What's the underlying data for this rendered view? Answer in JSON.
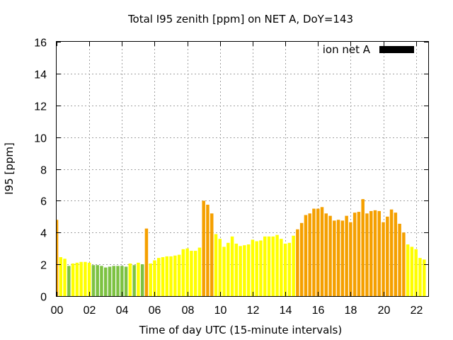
{
  "chart_data": {
    "type": "bar",
    "title": "Total I95 zenith [ppm] on NET A, DoY=143",
    "xlabel": "Time of day UTC (15-minute intervals)",
    "ylabel": "I95 [ppm]",
    "xlim": [
      0,
      22.75
    ],
    "ylim": [
      0,
      16
    ],
    "grid": true,
    "legend": {
      "position": "top-right",
      "entries": [
        {
          "label": "ion net A",
          "color": "#000000"
        }
      ]
    },
    "x_ticks": [
      {
        "value": 0,
        "label": "00"
      },
      {
        "value": 2,
        "label": "02"
      },
      {
        "value": 4,
        "label": "04"
      },
      {
        "value": 6,
        "label": "06"
      },
      {
        "value": 8,
        "label": "08"
      },
      {
        "value": 10,
        "label": "10"
      },
      {
        "value": 12,
        "label": "12"
      },
      {
        "value": 14,
        "label": "14"
      },
      {
        "value": 16,
        "label": "16"
      },
      {
        "value": 18,
        "label": "18"
      },
      {
        "value": 20,
        "label": "20"
      },
      {
        "value": 22,
        "label": "22"
      }
    ],
    "y_ticks": [
      {
        "value": 0,
        "label": "0"
      },
      {
        "value": 2,
        "label": "2"
      },
      {
        "value": 4,
        "label": "4"
      },
      {
        "value": 6,
        "label": "6"
      },
      {
        "value": 8,
        "label": "8"
      },
      {
        "value": 10,
        "label": "10"
      },
      {
        "value": 12,
        "label": "12"
      },
      {
        "value": 14,
        "label": "14"
      },
      {
        "value": 16,
        "label": "16"
      }
    ],
    "colors": {
      "green": "#7dc242",
      "yellow": "#ffff00",
      "orange": "#f5a000"
    },
    "bars": [
      {
        "x": 0.0,
        "value": 4.8,
        "color": "orange"
      },
      {
        "x": 0.25,
        "value": 2.45,
        "color": "yellow"
      },
      {
        "x": 0.5,
        "value": 2.35,
        "color": "yellow"
      },
      {
        "x": 0.75,
        "value": 1.9,
        "color": "green"
      },
      {
        "x": 1.0,
        "value": 2.05,
        "color": "yellow"
      },
      {
        "x": 1.25,
        "value": 2.1,
        "color": "yellow"
      },
      {
        "x": 1.5,
        "value": 2.15,
        "color": "yellow"
      },
      {
        "x": 1.75,
        "value": 2.15,
        "color": "yellow"
      },
      {
        "x": 2.0,
        "value": 2.1,
        "color": "yellow"
      },
      {
        "x": 2.25,
        "value": 1.95,
        "color": "green"
      },
      {
        "x": 2.5,
        "value": 1.95,
        "color": "green"
      },
      {
        "x": 2.75,
        "value": 1.9,
        "color": "green"
      },
      {
        "x": 3.0,
        "value": 1.8,
        "color": "green"
      },
      {
        "x": 3.25,
        "value": 1.85,
        "color": "green"
      },
      {
        "x": 3.5,
        "value": 1.9,
        "color": "green"
      },
      {
        "x": 3.75,
        "value": 1.9,
        "color": "green"
      },
      {
        "x": 4.0,
        "value": 1.9,
        "color": "green"
      },
      {
        "x": 4.25,
        "value": 1.85,
        "color": "green"
      },
      {
        "x": 4.5,
        "value": 2.05,
        "color": "yellow"
      },
      {
        "x": 4.75,
        "value": 1.95,
        "color": "green"
      },
      {
        "x": 5.0,
        "value": 2.1,
        "color": "yellow"
      },
      {
        "x": 5.25,
        "value": 2.0,
        "color": "green"
      },
      {
        "x": 5.5,
        "value": 4.25,
        "color": "orange"
      },
      {
        "x": 5.75,
        "value": 2.05,
        "color": "yellow"
      },
      {
        "x": 6.0,
        "value": 2.25,
        "color": "yellow"
      },
      {
        "x": 6.25,
        "value": 2.4,
        "color": "yellow"
      },
      {
        "x": 6.5,
        "value": 2.45,
        "color": "yellow"
      },
      {
        "x": 6.75,
        "value": 2.5,
        "color": "yellow"
      },
      {
        "x": 7.0,
        "value": 2.5,
        "color": "yellow"
      },
      {
        "x": 7.25,
        "value": 2.55,
        "color": "yellow"
      },
      {
        "x": 7.5,
        "value": 2.6,
        "color": "yellow"
      },
      {
        "x": 7.75,
        "value": 2.95,
        "color": "yellow"
      },
      {
        "x": 8.0,
        "value": 3.0,
        "color": "yellow"
      },
      {
        "x": 8.25,
        "value": 2.85,
        "color": "yellow"
      },
      {
        "x": 8.5,
        "value": 2.85,
        "color": "yellow"
      },
      {
        "x": 8.75,
        "value": 3.05,
        "color": "yellow"
      },
      {
        "x": 9.0,
        "value": 6.0,
        "color": "orange"
      },
      {
        "x": 9.25,
        "value": 5.75,
        "color": "orange"
      },
      {
        "x": 9.5,
        "value": 5.2,
        "color": "orange"
      },
      {
        "x": 9.75,
        "value": 3.9,
        "color": "yellow"
      },
      {
        "x": 10.0,
        "value": 3.6,
        "color": "yellow"
      },
      {
        "x": 10.25,
        "value": 3.1,
        "color": "yellow"
      },
      {
        "x": 10.5,
        "value": 3.35,
        "color": "yellow"
      },
      {
        "x": 10.75,
        "value": 3.75,
        "color": "yellow"
      },
      {
        "x": 11.0,
        "value": 3.3,
        "color": "yellow"
      },
      {
        "x": 11.25,
        "value": 3.15,
        "color": "yellow"
      },
      {
        "x": 11.5,
        "value": 3.2,
        "color": "yellow"
      },
      {
        "x": 11.75,
        "value": 3.25,
        "color": "yellow"
      },
      {
        "x": 12.0,
        "value": 3.55,
        "color": "yellow"
      },
      {
        "x": 12.25,
        "value": 3.45,
        "color": "yellow"
      },
      {
        "x": 12.5,
        "value": 3.5,
        "color": "yellow"
      },
      {
        "x": 12.75,
        "value": 3.75,
        "color": "yellow"
      },
      {
        "x": 13.0,
        "value": 3.75,
        "color": "yellow"
      },
      {
        "x": 13.25,
        "value": 3.75,
        "color": "yellow"
      },
      {
        "x": 13.5,
        "value": 3.85,
        "color": "yellow"
      },
      {
        "x": 13.75,
        "value": 3.6,
        "color": "yellow"
      },
      {
        "x": 14.0,
        "value": 3.3,
        "color": "yellow"
      },
      {
        "x": 14.25,
        "value": 3.35,
        "color": "yellow"
      },
      {
        "x": 14.5,
        "value": 3.8,
        "color": "yellow"
      },
      {
        "x": 14.75,
        "value": 4.2,
        "color": "orange"
      },
      {
        "x": 15.0,
        "value": 4.6,
        "color": "orange"
      },
      {
        "x": 15.25,
        "value": 5.1,
        "color": "orange"
      },
      {
        "x": 15.5,
        "value": 5.2,
        "color": "orange"
      },
      {
        "x": 15.75,
        "value": 5.5,
        "color": "orange"
      },
      {
        "x": 16.0,
        "value": 5.5,
        "color": "orange"
      },
      {
        "x": 16.25,
        "value": 5.6,
        "color": "orange"
      },
      {
        "x": 16.5,
        "value": 5.2,
        "color": "orange"
      },
      {
        "x": 16.75,
        "value": 5.05,
        "color": "orange"
      },
      {
        "x": 17.0,
        "value": 4.75,
        "color": "orange"
      },
      {
        "x": 17.25,
        "value": 4.8,
        "color": "orange"
      },
      {
        "x": 17.5,
        "value": 4.75,
        "color": "orange"
      },
      {
        "x": 17.75,
        "value": 5.05,
        "color": "orange"
      },
      {
        "x": 18.0,
        "value": 4.65,
        "color": "orange"
      },
      {
        "x": 18.25,
        "value": 5.25,
        "color": "orange"
      },
      {
        "x": 18.5,
        "value": 5.3,
        "color": "orange"
      },
      {
        "x": 18.75,
        "value": 6.1,
        "color": "orange"
      },
      {
        "x": 19.0,
        "value": 5.2,
        "color": "orange"
      },
      {
        "x": 19.25,
        "value": 5.35,
        "color": "orange"
      },
      {
        "x": 19.5,
        "value": 5.4,
        "color": "orange"
      },
      {
        "x": 19.75,
        "value": 5.35,
        "color": "orange"
      },
      {
        "x": 20.0,
        "value": 4.65,
        "color": "orange"
      },
      {
        "x": 20.25,
        "value": 5.0,
        "color": "orange"
      },
      {
        "x": 20.5,
        "value": 5.45,
        "color": "orange"
      },
      {
        "x": 20.75,
        "value": 5.25,
        "color": "orange"
      },
      {
        "x": 21.0,
        "value": 4.55,
        "color": "orange"
      },
      {
        "x": 21.25,
        "value": 4.0,
        "color": "orange"
      },
      {
        "x": 21.5,
        "value": 3.25,
        "color": "yellow"
      },
      {
        "x": 21.75,
        "value": 3.1,
        "color": "yellow"
      },
      {
        "x": 22.0,
        "value": 2.95,
        "color": "yellow"
      },
      {
        "x": 22.25,
        "value": 2.4,
        "color": "yellow"
      },
      {
        "x": 22.5,
        "value": 2.3,
        "color": "yellow"
      }
    ]
  }
}
